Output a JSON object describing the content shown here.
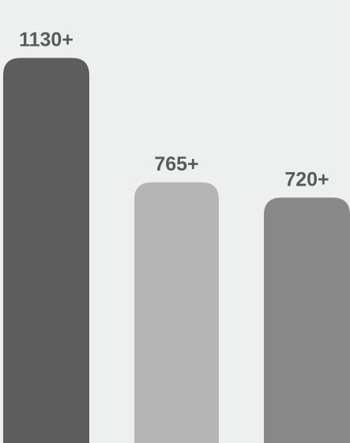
{
  "chart_data": {
    "type": "bar",
    "categories": [
      "",
      "",
      ""
    ],
    "values": [
      1130,
      765,
      720
    ],
    "data_labels": [
      "1130+",
      "765+",
      "720+"
    ],
    "bar_colors": [
      "#5d5d5d",
      "#b5b5b5",
      "#888888"
    ],
    "label_color": "#5a5a5a",
    "background": "#eef0ef",
    "ylim": [
      0,
      1300
    ],
    "grid": false,
    "legend": "none",
    "title": "",
    "xlabel": "",
    "ylabel": ""
  }
}
